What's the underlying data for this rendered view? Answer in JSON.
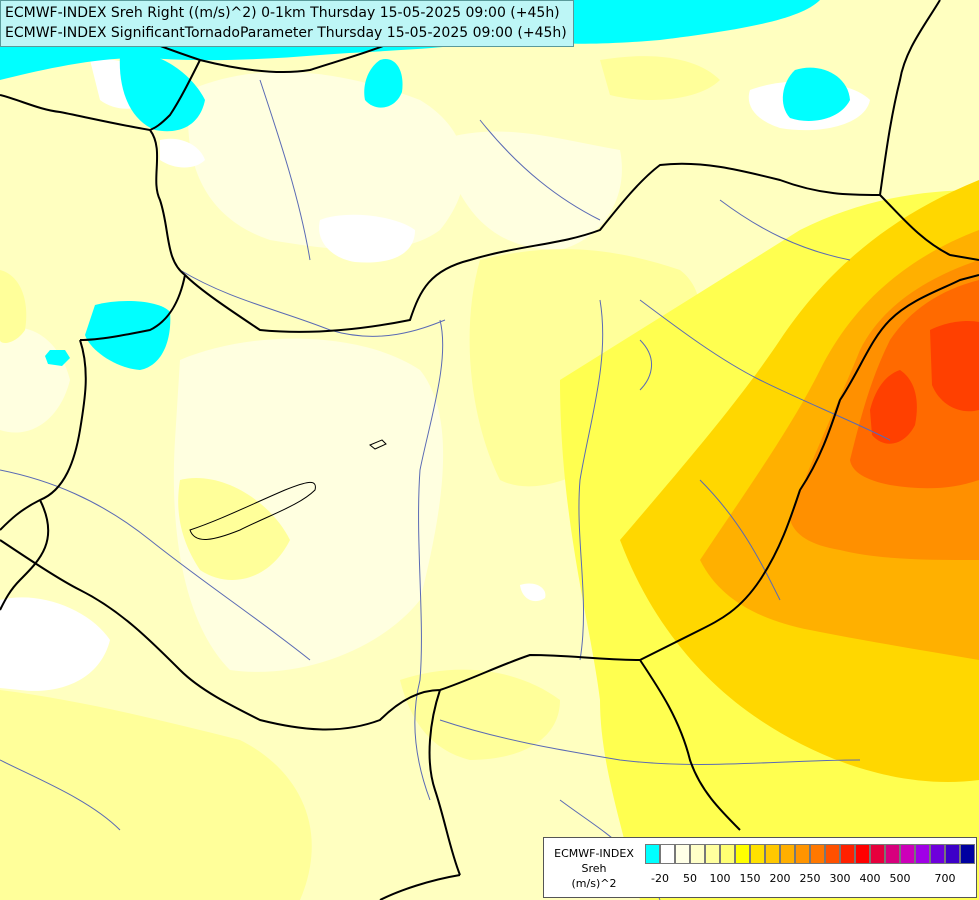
{
  "header": {
    "line1": "ECMWF-INDEX Sreh Right ((m/s)^2) 0-1km Thursday 15-05-2025 09:00 (+45h)",
    "line2": "ECMWF-INDEX SignificantTornadoParameter Thursday 15-05-2025 09:00 (+45h)"
  },
  "legend": {
    "title": "ECMWF-INDEX",
    "variable": "Sreh",
    "unit": "(m/s)^2",
    "swatches": [
      "#00ffff",
      "#ffffff",
      "#ffffe6",
      "#ffffc8",
      "#ffff9e",
      "#ffff73",
      "#ffff00",
      "#ffe100",
      "#ffc800",
      "#ffaf00",
      "#ff9400",
      "#ff7800",
      "#ff5000",
      "#ff2000",
      "#ff0000",
      "#e6003c",
      "#d7007d",
      "#cd00b9",
      "#a000e6",
      "#6e00dc",
      "#3c00c8",
      "#0000a0"
    ],
    "ticks": [
      "-20",
      "50",
      "100",
      "150",
      "200",
      "250",
      "300",
      "400",
      "500",
      "700"
    ]
  },
  "palette": {
    "background": "#ffffc0",
    "pale": "#ffffe0",
    "light": "#ffff9a",
    "yellow": "#ffff50",
    "gold": "#ffd700",
    "orange": "#ffb000",
    "dark_orange": "#ff9000",
    "red_orange": "#ff6a00",
    "red": "#ff4000",
    "cyan": "#00ffff",
    "white": "#ffffff",
    "river": "#5a6ab4",
    "border": "#000000"
  }
}
